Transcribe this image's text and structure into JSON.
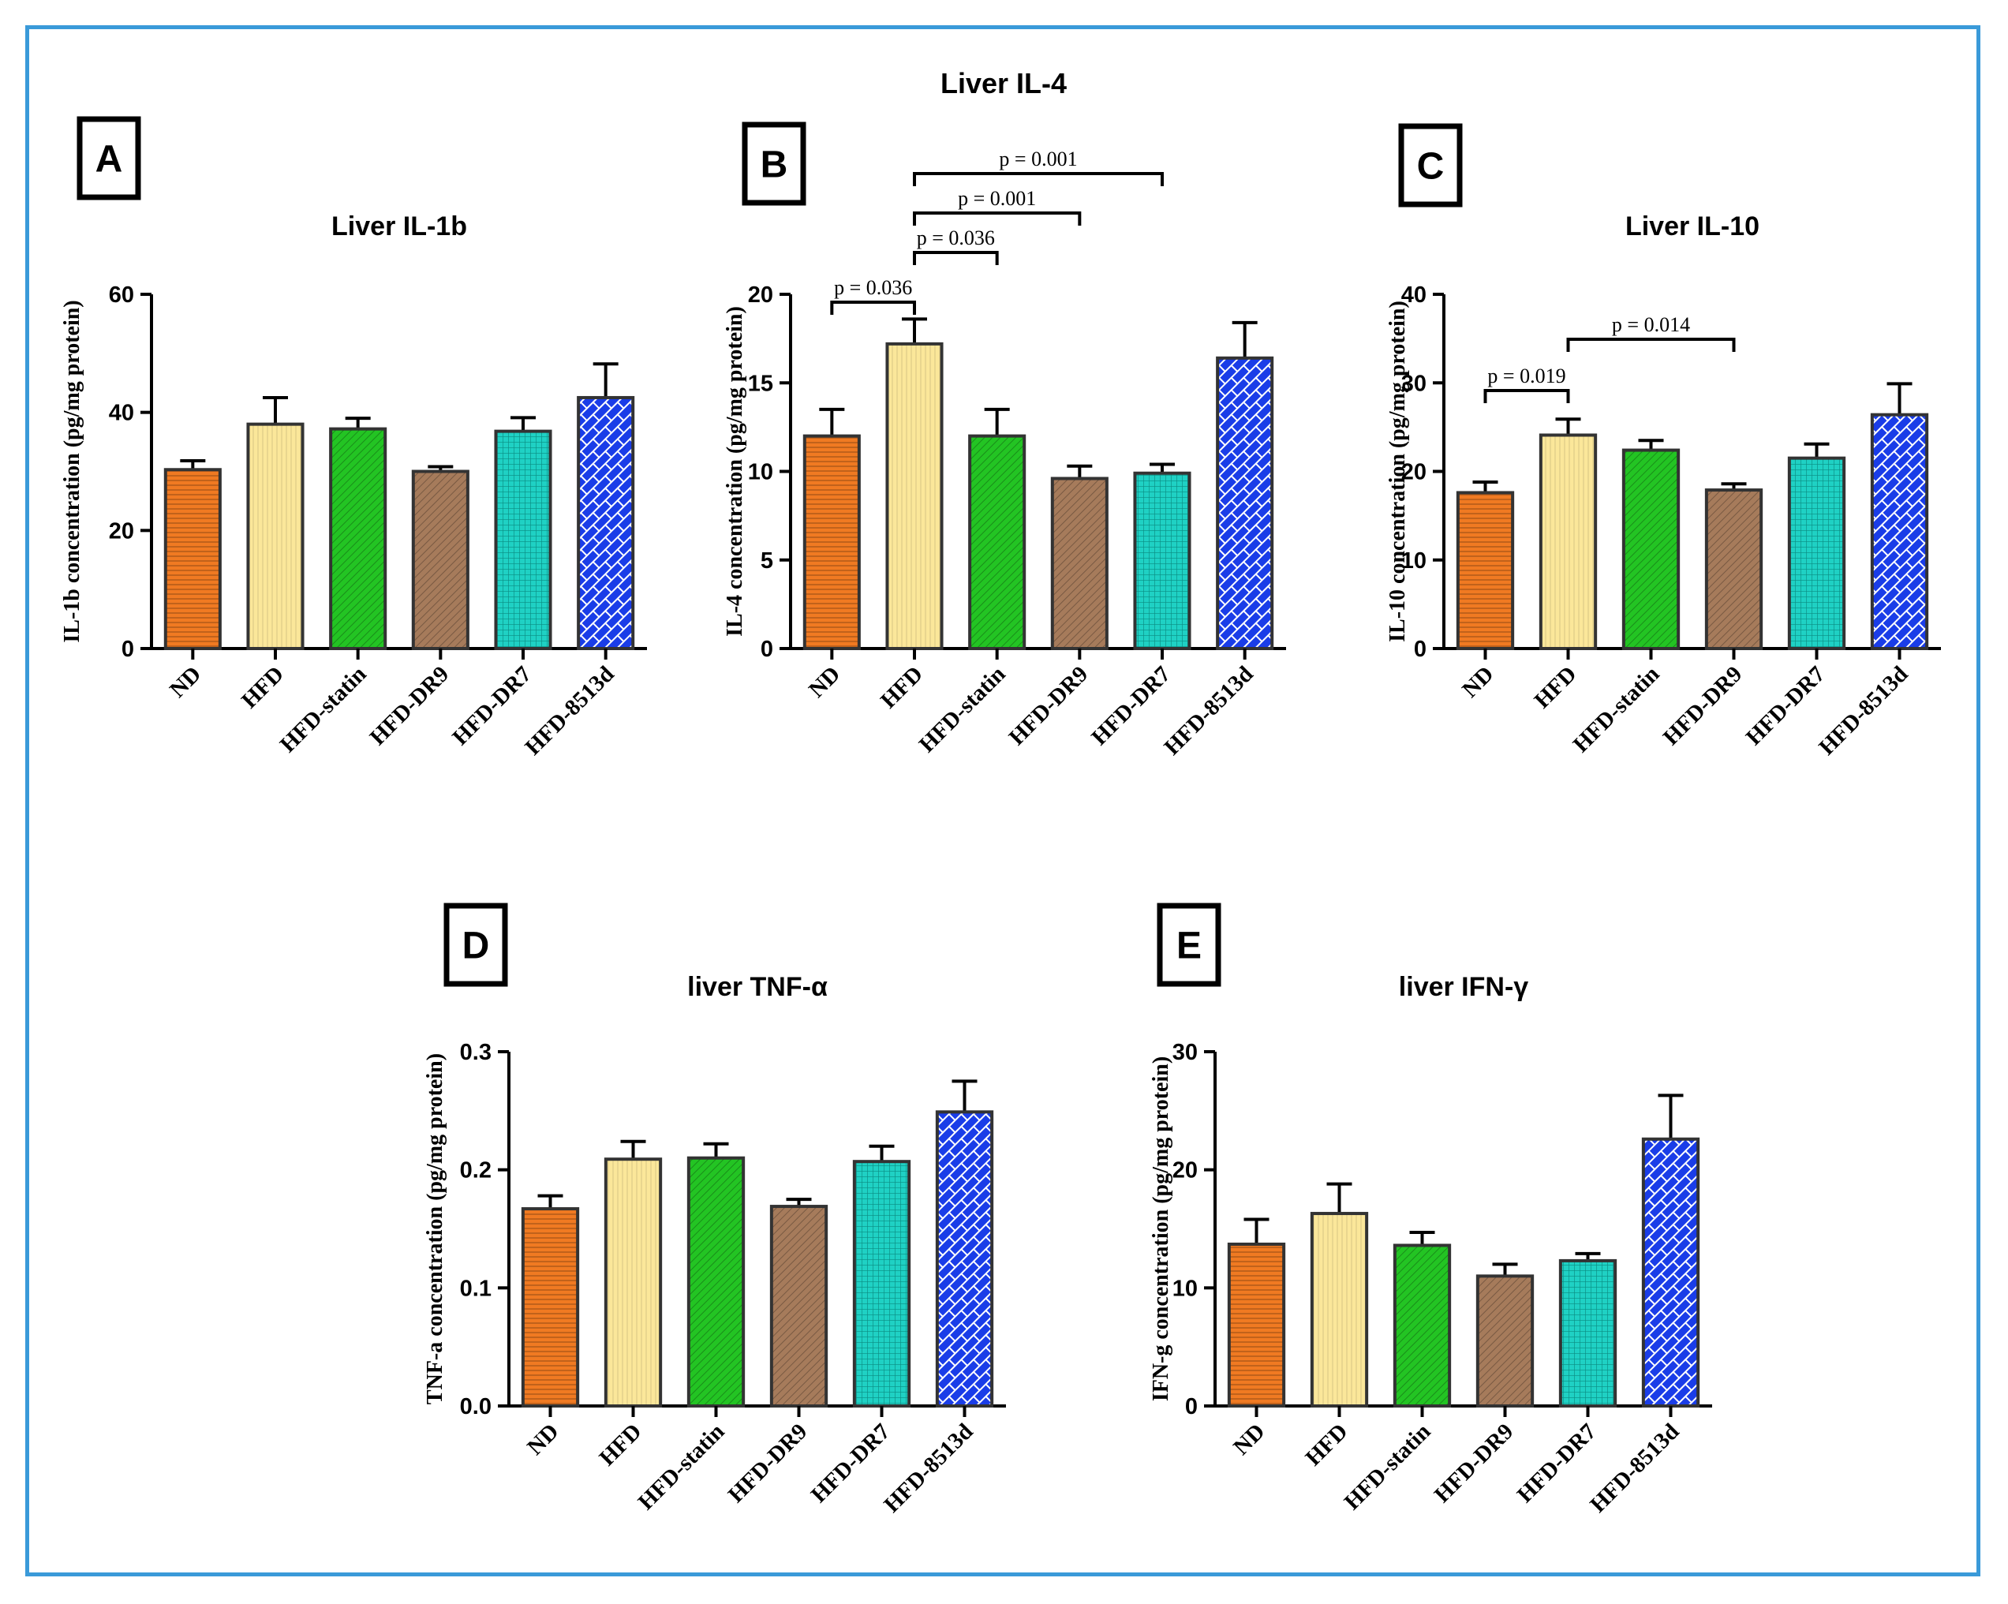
{
  "figure": {
    "header_title": "Liver IL-4",
    "border_color": "#3a9ad9"
  },
  "categories": [
    "ND",
    "HFD",
    "HFD-statin",
    "HFD-DR9",
    "HFD-DR7",
    "HFD-8513d"
  ],
  "bar_styles": [
    {
      "name": "ND",
      "color": "#f07a22",
      "pattern": "horizontal-lines"
    },
    {
      "name": "HFD",
      "color": "#fbe79a",
      "pattern": "vertical-lines"
    },
    {
      "name": "HFD-statin",
      "color": "#23c423",
      "pattern": "diagonal-lines"
    },
    {
      "name": "HFD-DR9",
      "color": "#a67b5b",
      "pattern": "diagonal-lines"
    },
    {
      "name": "HFD-DR7",
      "color": "#1fd1c4",
      "pattern": "grid"
    },
    {
      "name": "HFD-8513d",
      "color": "#1a3de8",
      "pattern": "bricks"
    }
  ],
  "chart_data": [
    {
      "panel": "A",
      "type": "bar",
      "title": "Liver IL-1b",
      "ylabel": "IL-1b concentration (pg/mg protein)",
      "ylim": [
        0,
        60
      ],
      "yticks": [
        0,
        20,
        40,
        60
      ],
      "values": [
        30.3,
        38,
        37.2,
        30,
        36.8,
        42.5
      ],
      "errors": [
        1.5,
        4.5,
        1.8,
        0.8,
        2.3,
        5.7
      ],
      "significance": []
    },
    {
      "panel": "B",
      "type": "bar",
      "title": "",
      "ylabel": "IL-4 concentration (pg/mg protein)",
      "ylim": [
        0,
        20
      ],
      "yticks": [
        0,
        5,
        10,
        15,
        20
      ],
      "values": [
        12,
        17.2,
        12,
        9.6,
        9.9,
        16.4
      ],
      "errors": [
        1.5,
        1.4,
        1.5,
        0.7,
        0.5,
        2
      ],
      "significance": [
        {
          "from": 0,
          "to": 1,
          "label": "p = 0.036"
        },
        {
          "from": 1,
          "to": 2,
          "label": "p = 0.036"
        },
        {
          "from": 1,
          "to": 3,
          "label": "p = 0.001"
        },
        {
          "from": 1,
          "to": 4,
          "label": "p = 0.001"
        }
      ]
    },
    {
      "panel": "C",
      "type": "bar",
      "title": "Liver IL-10",
      "ylabel": "IL-10 concentration (pg/mg protein)",
      "ylim": [
        0,
        40
      ],
      "yticks": [
        0,
        10,
        20,
        30,
        40
      ],
      "values": [
        17.6,
        24.1,
        22.4,
        17.9,
        21.5,
        26.4
      ],
      "errors": [
        1.2,
        1.8,
        1.1,
        0.7,
        1.6,
        3.5
      ],
      "significance": [
        {
          "from": 0,
          "to": 1,
          "label": "p = 0.019"
        },
        {
          "from": 1,
          "to": 3,
          "label": "p = 0.014"
        }
      ]
    },
    {
      "panel": "D",
      "type": "bar",
      "title": "liver TNF-α",
      "ylabel": "TNF-a concentration (pg/mg protein)",
      "ylim": [
        0,
        0.3
      ],
      "yticks": [
        0.0,
        0.1,
        0.2,
        0.3
      ],
      "ytick_labels": [
        "0.0",
        "0.1",
        "0.2",
        "0.3"
      ],
      "values": [
        0.167,
        0.209,
        0.21,
        0.169,
        0.207,
        0.249
      ],
      "errors": [
        0.011,
        0.015,
        0.012,
        0.006,
        0.013,
        0.026
      ],
      "significance": []
    },
    {
      "panel": "E",
      "type": "bar",
      "title": "liver IFN-γ",
      "ylabel": "IFN-g concentration (pg/mg protein)",
      "ylim": [
        0,
        30
      ],
      "yticks": [
        0,
        10,
        20,
        30
      ],
      "values": [
        13.7,
        16.3,
        13.6,
        11,
        12.3,
        22.6
      ],
      "errors": [
        2.1,
        2.5,
        1.1,
        1,
        0.6,
        3.7
      ],
      "significance": []
    }
  ]
}
